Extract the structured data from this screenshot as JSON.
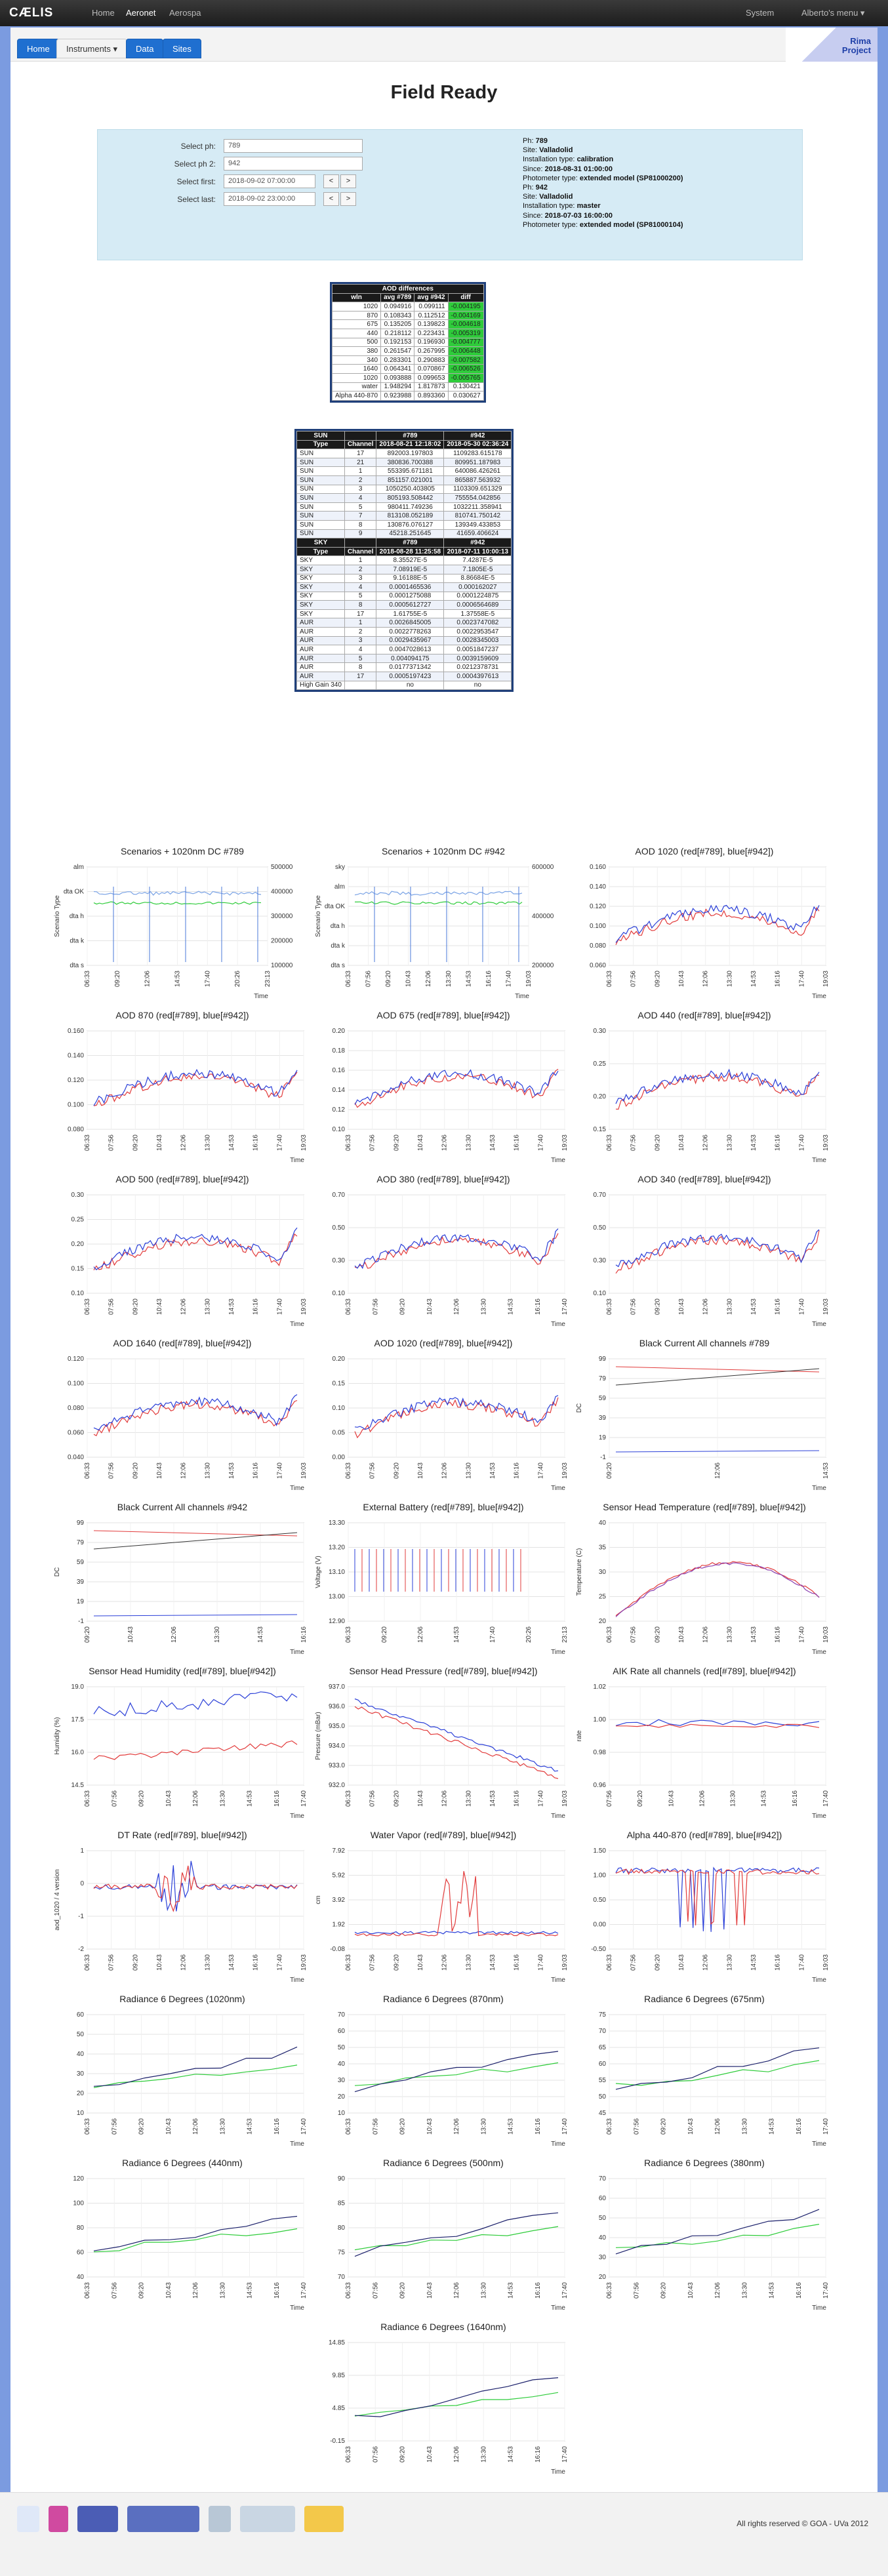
{
  "nav": {
    "brand": "CÆLIS",
    "items": [
      "Home",
      "Aeronet",
      "Aerospa"
    ],
    "right": [
      "System",
      "Alberto's menu ▾"
    ]
  },
  "tabs": [
    "Home",
    "Instruments ▾",
    "Data",
    "Sites"
  ],
  "project": {
    "line1": "Rima",
    "line2": "Project"
  },
  "title": "Field Ready",
  "selectors": {
    "ph1_label": "Select ph:",
    "ph1": "789",
    "ph2_label": "Select ph 2:",
    "ph2": "942",
    "first_label": "Select first:",
    "first": "2018-09-02 07:00:00",
    "last_label": "Select last:",
    "last": "2018-09-02 23:00:00",
    "prev": "<",
    "next": ">"
  },
  "info": [
    {
      "k": "Ph:",
      "v": "789"
    },
    {
      "k": "Site:",
      "v": "Valladolid"
    },
    {
      "k": "Installation type:",
      "v": "calibration"
    },
    {
      "k": "Since:",
      "v": "2018-08-31 01:00:00"
    },
    {
      "k": "Photometer type:",
      "v": "extended model (SP81000200)"
    },
    {
      "k": "Ph:",
      "v": "942"
    },
    {
      "k": "Site:",
      "v": "Valladolid"
    },
    {
      "k": "Installation type:",
      "v": "master"
    },
    {
      "k": "Since:",
      "v": "2018-07-03 16:00:00"
    },
    {
      "k": "Photometer type:",
      "v": "extended model (SP81000104)"
    }
  ],
  "aod_table": {
    "title": "AOD differences",
    "headers": [
      "wln",
      "avg #789",
      "avg #942",
      "diff"
    ],
    "rows": [
      [
        "1020",
        "0.094916",
        "0.099111",
        "-0.004195"
      ],
      [
        "870",
        "0.108343",
        "0.112512",
        "-0.004169"
      ],
      [
        "675",
        "0.135205",
        "0.139823",
        "-0.004618"
      ],
      [
        "440",
        "0.218112",
        "0.223431",
        "-0.005319"
      ],
      [
        "500",
        "0.192153",
        "0.196930",
        "-0.004777"
      ],
      [
        "380",
        "0.261547",
        "0.267995",
        "-0.006448"
      ],
      [
        "340",
        "0.283301",
        "0.290883",
        "-0.007582"
      ],
      [
        "1640",
        "0.064341",
        "0.070867",
        "-0.006526"
      ],
      [
        "1020",
        "0.093888",
        "0.099653",
        "-0.005765"
      ],
      [
        "water",
        "1.948294",
        "1.817873",
        "0.130421"
      ],
      [
        "Alpha 440-870",
        "0.923988",
        "0.893360",
        "0.030627"
      ]
    ]
  },
  "sun_table": {
    "headers1": [
      "SUN",
      "",
      "#789",
      "#942"
    ],
    "headers2": [
      "Type",
      "Channel",
      "2018-08-21 12:18:02",
      "2018-05-30 02:36:24"
    ],
    "rows": [
      [
        "SUN",
        "17",
        "892003.197803",
        "1109283.615178"
      ],
      [
        "SUN",
        "21",
        "380836.700388",
        "809951.187983"
      ],
      [
        "SUN",
        "1",
        "553395.671181",
        "640086.426261"
      ],
      [
        "SUN",
        "2",
        "851157.021001",
        "865887.563932"
      ],
      [
        "SUN",
        "3",
        "1050250.403805",
        "1103309.651329"
      ],
      [
        "SUN",
        "4",
        "805193.508442",
        "755554.042856"
      ],
      [
        "SUN",
        "5",
        "980411.749236",
        "1032211.358941"
      ],
      [
        "SUN",
        "7",
        "813108.052189",
        "810741.750142"
      ],
      [
        "SUN",
        "8",
        "130876.076127",
        "139349.433853"
      ],
      [
        "SUN",
        "9",
        "45218.251645",
        "41659.406624"
      ]
    ]
  },
  "sky_table": {
    "headers1": [
      "SKY",
      "",
      "#789",
      "#942"
    ],
    "headers2": [
      "Type",
      "Channel",
      "2018-08-28 11:25:58",
      "2018-07-11 10:00:13"
    ],
    "rows": [
      [
        "SKY",
        "1",
        "8.35527E-5",
        "7.4287E-5"
      ],
      [
        "SKY",
        "2",
        "7.08919E-5",
        "7.1805E-5"
      ],
      [
        "SKY",
        "3",
        "9.16188E-5",
        "8.86684E-5"
      ],
      [
        "SKY",
        "4",
        "0.0001465536",
        "0.000162027"
      ],
      [
        "SKY",
        "5",
        "0.0001275088",
        "0.0001224875"
      ],
      [
        "SKY",
        "8",
        "0.0005612727",
        "0.0006564689"
      ],
      [
        "SKY",
        "17",
        "1.61755E-5",
        "1.37558E-5"
      ],
      [
        "AUR",
        "1",
        "0.0026845005",
        "0.0023747082"
      ],
      [
        "AUR",
        "2",
        "0.0022778263",
        "0.0022953547"
      ],
      [
        "AUR",
        "3",
        "0.0029435967",
        "0.0028345003"
      ],
      [
        "AUR",
        "4",
        "0.0047028613",
        "0.0051847237"
      ],
      [
        "AUR",
        "5",
        "0.004094175",
        "0.0039159609"
      ],
      [
        "AUR",
        "8",
        "0.0177371342",
        "0.0212378731"
      ],
      [
        "AUR",
        "17",
        "0.0005197423",
        "0.0004397613"
      ],
      [
        "High Gain 340",
        "",
        "no",
        "no"
      ]
    ]
  },
  "charts": [
    {
      "title": "Scenarios + 1020nm DC #789",
      "kind": "scen",
      "yticks": [
        "alm",
        "dta OK",
        "dta h",
        "dta k",
        "dta s"
      ],
      "ylabel": "Scenario Type",
      "y2ticks": [
        "500000",
        "400000",
        "300000",
        "200000",
        "100000"
      ],
      "xticks": [
        "06:33",
        "09:20",
        "12:06",
        "14:53",
        "17:40",
        "20:26",
        "23:13"
      ],
      "xlabel": "Time"
    },
    {
      "title": "Scenarios + 1020nm DC #942",
      "kind": "scen",
      "yticks": [
        "sky",
        "alm",
        "dta OK",
        "dta h",
        "dta k",
        "dta s"
      ],
      "ylabel": "Scenario Type",
      "y2ticks": [
        "600000",
        "400000",
        "200000"
      ],
      "xticks": [
        "06:33",
        "07:56",
        "09:20",
        "10:43",
        "12:06",
        "13:30",
        "14:53",
        "16:16",
        "17:40",
        "19:03"
      ],
      "xlabel": "Time"
    },
    {
      "title": "AOD 1020 (red[#789], blue[#942])",
      "kind": "aod",
      "yticks": [
        "0.160",
        "0.140",
        "0.120",
        "0.100",
        "0.080",
        "0.060"
      ],
      "xticks": [
        "06:33",
        "07:56",
        "09:20",
        "10:43",
        "12:06",
        "13:30",
        "14:53",
        "16:16",
        "17:40",
        "19:03"
      ],
      "xlabel": "Time"
    },
    {
      "title": "AOD 870 (red[#789], blue[#942])",
      "kind": "aod",
      "yticks": [
        "0.160",
        "0.140",
        "0.120",
        "0.100",
        "0.080"
      ],
      "xticks": [
        "06:33",
        "07:56",
        "09:20",
        "10:43",
        "12:06",
        "13:30",
        "14:53",
        "16:16",
        "17:40",
        "19:03"
      ],
      "xlabel": "Time"
    },
    {
      "title": "AOD 675 (red[#789], blue[#942])",
      "kind": "aod",
      "yticks": [
        "0.20",
        "0.18",
        "0.16",
        "0.14",
        "0.12",
        "0.10"
      ],
      "xticks": [
        "06:33",
        "07:56",
        "09:20",
        "10:43",
        "12:06",
        "13:30",
        "14:53",
        "16:16",
        "17:40",
        "19:03"
      ],
      "xlabel": "Time"
    },
    {
      "title": "AOD 440 (red[#789], blue[#942])",
      "kind": "aod",
      "yticks": [
        "0.30",
        "0.25",
        "0.20",
        "0.15"
      ],
      "xticks": [
        "06:33",
        "07:56",
        "09:20",
        "10:43",
        "12:06",
        "13:30",
        "14:53",
        "16:16",
        "17:40",
        "19:03"
      ],
      "xlabel": "Time"
    },
    {
      "title": "AOD 500 (red[#789], blue[#942])",
      "kind": "aod",
      "yticks": [
        "0.30",
        "0.25",
        "0.20",
        "0.15",
        "0.10"
      ],
      "xticks": [
        "06:33",
        "07:56",
        "09:20",
        "10:43",
        "12:06",
        "13:30",
        "14:53",
        "16:16",
        "17:40",
        "19:03"
      ],
      "xlabel": "Time"
    },
    {
      "title": "AOD 380 (red[#789], blue[#942])",
      "kind": "aod",
      "yticks": [
        "0.70",
        "0.50",
        "0.30",
        "0.10"
      ],
      "xticks": [
        "06:33",
        "07:56",
        "09:20",
        "10:43",
        "12:06",
        "13:30",
        "14:53",
        "16:16",
        "17:40"
      ],
      "xlabel": "Time"
    },
    {
      "title": "AOD 340 (red[#789], blue[#942])",
      "kind": "aod",
      "yticks": [
        "0.70",
        "0.50",
        "0.30",
        "0.10"
      ],
      "xticks": [
        "06:33",
        "07:56",
        "09:20",
        "10:43",
        "12:06",
        "13:30",
        "14:53",
        "16:16",
        "17:40",
        "19:03"
      ],
      "xlabel": "Time"
    },
    {
      "title": "AOD 1640 (red[#789], blue[#942])",
      "kind": "aod",
      "yticks": [
        "0.120",
        "0.100",
        "0.080",
        "0.060",
        "0.040"
      ],
      "xticks": [
        "06:33",
        "07:56",
        "09:20",
        "10:43",
        "12:06",
        "13:30",
        "14:53",
        "16:16",
        "17:40",
        "19:03"
      ],
      "xlabel": "Time"
    },
    {
      "title": "AOD 1020 (red[#789], blue[#942])",
      "kind": "aod",
      "yticks": [
        "0.20",
        "0.15",
        "0.10",
        "0.05",
        "0.00"
      ],
      "xticks": [
        "06:33",
        "07:56",
        "09:20",
        "10:43",
        "12:06",
        "13:30",
        "14:53",
        "16:16",
        "17:40",
        "19:03"
      ],
      "xlabel": "Time"
    },
    {
      "title": "Black Current All channels #789",
      "kind": "bc",
      "yticks": [
        "99",
        "79",
        "59",
        "39",
        "19",
        "-1"
      ],
      "ylabel": "DC",
      "xticks": [
        "09:20",
        "12:06",
        "14:53"
      ],
      "xlabel": "Time"
    },
    {
      "title": "Black Current All channels #942",
      "kind": "bc",
      "yticks": [
        "99",
        "79",
        "59",
        "39",
        "19",
        "-1"
      ],
      "ylabel": "DC",
      "xticks": [
        "09:20",
        "10:43",
        "12:06",
        "13:30",
        "14:53",
        "16:16"
      ],
      "xlabel": "Time"
    },
    {
      "title": "External Battery (red[#789], blue[#942])",
      "kind": "bat",
      "yticks": [
        "13.30",
        "13.20",
        "13.10",
        "13.00",
        "12.90"
      ],
      "ylabel": "Voltage (V)",
      "xticks": [
        "06:33",
        "09:20",
        "12:06",
        "14:53",
        "17:40",
        "20:26",
        "23:13"
      ],
      "xlabel": "Time"
    },
    {
      "title": "Sensor Head Temperature (red[#789], blue[#942])",
      "kind": "temp",
      "yticks": [
        "40",
        "35",
        "30",
        "25",
        "20"
      ],
      "ylabel": "Temperature (C)",
      "xticks": [
        "06:33",
        "07:56",
        "09:20",
        "10:43",
        "12:06",
        "13:30",
        "14:53",
        "16:16",
        "17:40",
        "19:03"
      ],
      "xlabel": "Time"
    },
    {
      "title": "Sensor Head Humidity (red[#789], blue[#942])",
      "kind": "hum",
      "yticks": [
        "19.0",
        "17.5",
        "16.0",
        "14.5"
      ],
      "ylabel": "Humidity (%)",
      "xticks": [
        "06:33",
        "07:56",
        "09:20",
        "10:43",
        "12:06",
        "13:30",
        "14:53",
        "16:16",
        "17:40"
      ],
      "xlabel": "Time"
    },
    {
      "title": "Sensor Head Pressure (red[#789], blue[#942])",
      "kind": "pres",
      "yticks": [
        "937.0",
        "936.0",
        "935.0",
        "934.0",
        "933.0",
        "932.0"
      ],
      "ylabel": "Pressure (mBar)",
      "xticks": [
        "06:33",
        "07:56",
        "09:20",
        "10:43",
        "12:06",
        "13:30",
        "14:53",
        "16:16",
        "17:40",
        "19:03"
      ],
      "xlabel": "Time"
    },
    {
      "title": "AIK Rate all channels (red[#789], blue[#942])",
      "kind": "aik",
      "yticks": [
        "1.02",
        "1.00",
        "0.98",
        "0.96"
      ],
      "ylabel": "rate",
      "xticks": [
        "07:56",
        "09:20",
        "10:43",
        "12:06",
        "13:30",
        "14:53",
        "16:16",
        "17:40"
      ],
      "xlabel": "Time"
    },
    {
      "title": "DT Rate (red[#789], blue[#942])",
      "kind": "dt",
      "yticks": [
        "1",
        "0",
        "-1",
        "-2"
      ],
      "ylabel": "aod_1020 / 4 version",
      "xticks": [
        "06:33",
        "07:56",
        "09:20",
        "10:43",
        "12:06",
        "13:30",
        "14:53",
        "16:16",
        "17:40",
        "19:03"
      ],
      "xlabel": "Time"
    },
    {
      "title": "Water Vapor (red[#789], blue[#942])",
      "kind": "wv",
      "yticks": [
        "7.92",
        "5.92",
        "3.92",
        "1.92",
        "-0.08"
      ],
      "ylabel": "cm",
      "xticks": [
        "06:33",
        "07:56",
        "09:20",
        "10:43",
        "12:06",
        "13:30",
        "14:53",
        "16:16",
        "17:40",
        "19:03"
      ],
      "xlabel": "Time"
    },
    {
      "title": "Alpha 440-870 (red[#789], blue[#942])",
      "kind": "alpha",
      "yticks": [
        "1.50",
        "1.00",
        "0.50",
        "0.00",
        "-0.50"
      ],
      "xticks": [
        "06:33",
        "07:56",
        "09:20",
        "10:43",
        "12:06",
        "13:30",
        "14:53",
        "16:16",
        "17:40",
        "19:03"
      ],
      "xlabel": "Time"
    },
    {
      "title": "Radiance 6 Degrees (1020nm)",
      "kind": "rad",
      "yticks": [
        "60",
        "50",
        "40",
        "30",
        "20",
        "10"
      ],
      "xticks": [
        "06:33",
        "07:56",
        "09:20",
        "10:43",
        "12:06",
        "13:30",
        "14:53",
        "16:16",
        "17:40"
      ],
      "xlabel": "Time"
    },
    {
      "title": "Radiance 6 Degrees (870nm)",
      "kind": "rad",
      "yticks": [
        "70",
        "60",
        "50",
        "40",
        "30",
        "20",
        "10"
      ],
      "xticks": [
        "06:33",
        "07:56",
        "09:20",
        "10:43",
        "12:06",
        "13:30",
        "14:53",
        "16:16",
        "17:40"
      ],
      "xlabel": "Time"
    },
    {
      "title": "Radiance 6 Degrees (675nm)",
      "kind": "rad2",
      "yticks": [
        "75",
        "70",
        "65",
        "60",
        "55",
        "50",
        "45"
      ],
      "xticks": [
        "06:33",
        "07:56",
        "09:20",
        "10:43",
        "12:06",
        "13:30",
        "14:53",
        "16:16",
        "17:40"
      ],
      "xlabel": "Time"
    },
    {
      "title": "Radiance 6 Degrees (440nm)",
      "kind": "rad3",
      "yticks": [
        "120",
        "100",
        "80",
        "60",
        "40"
      ],
      "xticks": [
        "06:33",
        "07:56",
        "09:20",
        "10:43",
        "12:06",
        "13:30",
        "14:53",
        "16:16",
        "17:40"
      ],
      "xlabel": "Time"
    },
    {
      "title": "Radiance 6 Degrees (500nm)",
      "kind": "rad4",
      "yticks": [
        "90",
        "85",
        "80",
        "75",
        "70"
      ],
      "xticks": [
        "06:33",
        "07:56",
        "09:20",
        "10:43",
        "12:06",
        "13:30",
        "14:53",
        "16:16",
        "17:40"
      ],
      "xlabel": "Time"
    },
    {
      "title": "Radiance 6 Degrees (380nm)",
      "kind": "rad5",
      "yticks": [
        "70",
        "60",
        "50",
        "40",
        "30",
        "20"
      ],
      "xticks": [
        "06:33",
        "07:56",
        "09:20",
        "10:43",
        "12:06",
        "13:30",
        "14:53",
        "16:16",
        "17:40"
      ],
      "xlabel": "Time"
    },
    {
      "title": "Radiance 6 Degrees (1640nm)",
      "kind": "rad6",
      "yticks": [
        "14.85",
        "9.85",
        "4.85",
        "-0.15"
      ],
      "xticks": [
        "06:33",
        "07:56",
        "09:20",
        "10:43",
        "12:06",
        "13:30",
        "14:53",
        "16:16",
        "17:40"
      ],
      "xlabel": "Time"
    }
  ],
  "footer": {
    "logos": [
      "goa-logo",
      "uva-logo",
      "aeronet-logo",
      "aeronet-logo",
      "photons-logo",
      "actris-logo",
      "gobierno-logo"
    ],
    "copyright": "All rights reserved © GOA - UVa 2012"
  },
  "colors": {
    "red": "#e23b3b",
    "blue": "#2a3fd8",
    "green": "#2ecc3a",
    "navy": "#1f3f7a"
  }
}
